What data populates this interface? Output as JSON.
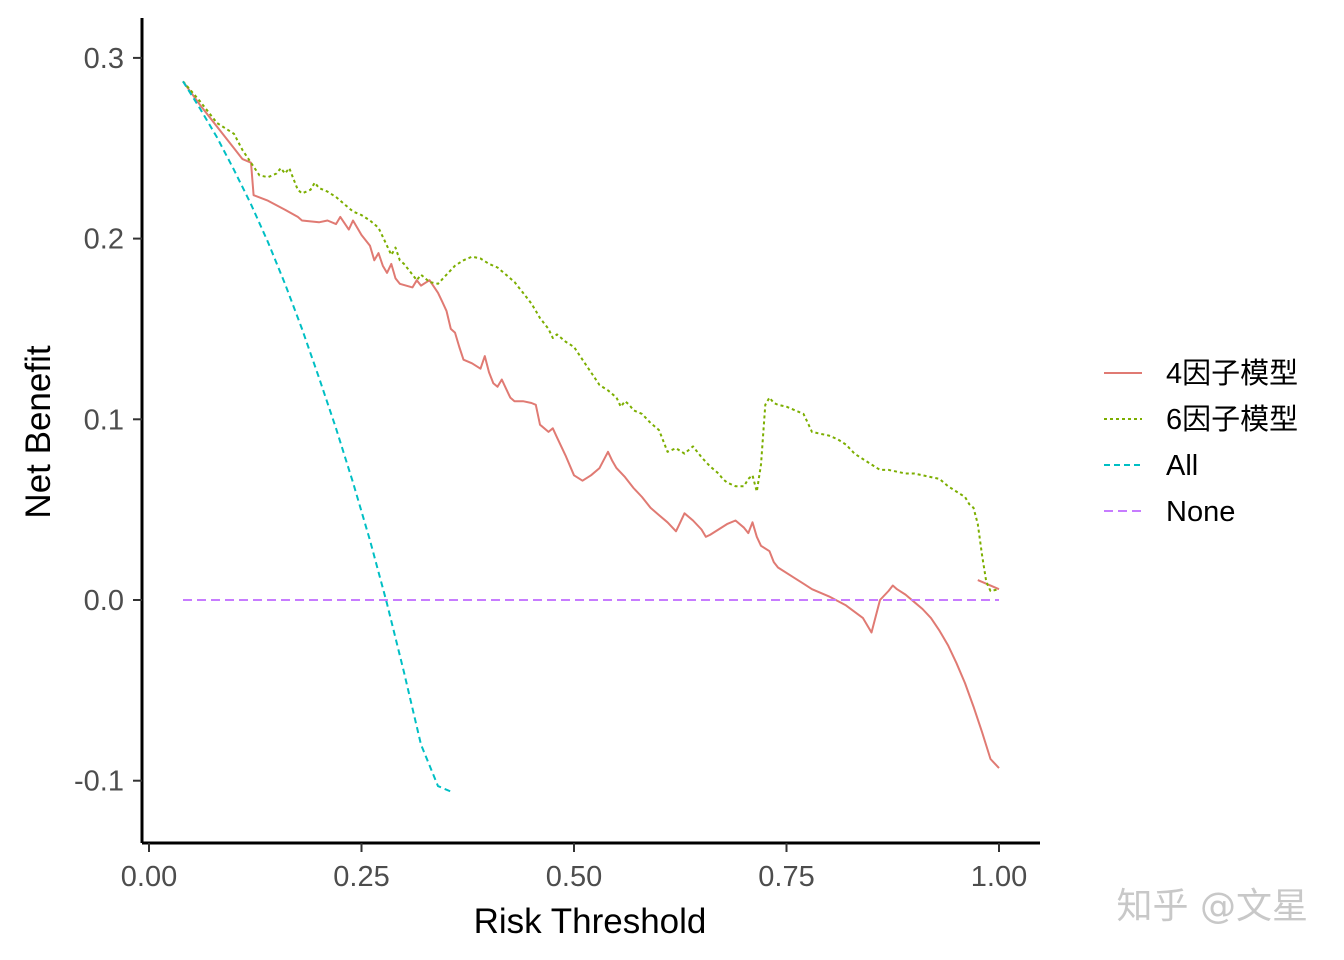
{
  "chart_data": {
    "type": "line",
    "title": "",
    "xlabel": "Risk Threshold",
    "ylabel": "Net Benefit",
    "xlim": [
      0.0,
      1.0
    ],
    "ylim": [
      -0.13,
      0.325
    ],
    "xticks": [
      0.0,
      0.25,
      0.5,
      0.75,
      1.0
    ],
    "xtick_labels": [
      "0.00",
      "0.25",
      "0.50",
      "0.75",
      "1.00"
    ],
    "yticks": [
      -0.1,
      0.0,
      0.1,
      0.2,
      0.3
    ],
    "ytick_labels": [
      "-0.1",
      "0.0",
      "0.1",
      "0.2",
      "0.3"
    ],
    "legend_position": "right",
    "grid": false,
    "series": [
      {
        "name": "4因子模型",
        "color": "#e07a73",
        "dash": "solid",
        "segments": [
          [
            [
              0.04,
              0.287
            ],
            [
              0.06,
              0.274
            ],
            [
              0.08,
              0.262
            ],
            [
              0.1,
              0.25
            ],
            [
              0.11,
              0.244
            ],
            [
              0.12,
              0.242
            ],
            [
              0.123,
              0.224
            ],
            [
              0.14,
              0.221
            ],
            [
              0.16,
              0.216
            ],
            [
              0.175,
              0.212
            ],
            [
              0.18,
              0.21
            ],
            [
              0.2,
              0.209
            ],
            [
              0.21,
              0.21
            ],
            [
              0.22,
              0.208
            ],
            [
              0.225,
              0.212
            ],
            [
              0.235,
              0.205
            ],
            [
              0.24,
              0.21
            ],
            [
              0.25,
              0.202
            ],
            [
              0.26,
              0.196
            ],
            [
              0.265,
              0.188
            ],
            [
              0.27,
              0.192
            ],
            [
              0.275,
              0.185
            ],
            [
              0.28,
              0.181
            ],
            [
              0.285,
              0.186
            ],
            [
              0.29,
              0.178
            ],
            [
              0.295,
              0.175
            ],
            [
              0.31,
              0.173
            ],
            [
              0.315,
              0.177
            ],
            [
              0.32,
              0.174
            ],
            [
              0.33,
              0.177
            ],
            [
              0.34,
              0.17
            ],
            [
              0.345,
              0.165
            ],
            [
              0.35,
              0.16
            ],
            [
              0.355,
              0.15
            ],
            [
              0.36,
              0.148
            ],
            [
              0.365,
              0.14
            ],
            [
              0.37,
              0.133
            ],
            [
              0.38,
              0.131
            ],
            [
              0.39,
              0.128
            ],
            [
              0.395,
              0.135
            ],
            [
              0.4,
              0.126
            ],
            [
              0.405,
              0.12
            ],
            [
              0.41,
              0.118
            ],
            [
              0.415,
              0.122
            ],
            [
              0.42,
              0.117
            ],
            [
              0.425,
              0.112
            ],
            [
              0.43,
              0.11
            ],
            [
              0.44,
              0.11
            ],
            [
              0.45,
              0.109
            ],
            [
              0.455,
              0.108
            ],
            [
              0.46,
              0.097
            ],
            [
              0.47,
              0.093
            ],
            [
              0.475,
              0.095
            ],
            [
              0.48,
              0.09
            ],
            [
              0.49,
              0.08
            ],
            [
              0.5,
              0.069
            ],
            [
              0.51,
              0.066
            ],
            [
              0.52,
              0.069
            ],
            [
              0.53,
              0.073
            ],
            [
              0.54,
              0.082
            ],
            [
              0.545,
              0.077
            ],
            [
              0.55,
              0.073
            ],
            [
              0.56,
              0.068
            ],
            [
              0.57,
              0.062
            ],
            [
              0.58,
              0.057
            ],
            [
              0.59,
              0.051
            ],
            [
              0.6,
              0.047
            ],
            [
              0.61,
              0.043
            ],
            [
              0.62,
              0.038
            ],
            [
              0.625,
              0.043
            ],
            [
              0.63,
              0.048
            ],
            [
              0.64,
              0.044
            ],
            [
              0.65,
              0.039
            ],
            [
              0.655,
              0.035
            ],
            [
              0.66,
              0.036
            ],
            [
              0.67,
              0.039
            ],
            [
              0.68,
              0.042
            ],
            [
              0.69,
              0.044
            ],
            [
              0.7,
              0.04
            ],
            [
              0.705,
              0.037
            ],
            [
              0.71,
              0.043
            ],
            [
              0.715,
              0.035
            ],
            [
              0.72,
              0.03
            ],
            [
              0.73,
              0.027
            ],
            [
              0.735,
              0.021
            ],
            [
              0.74,
              0.018
            ],
            [
              0.76,
              0.012
            ],
            [
              0.77,
              0.009
            ],
            [
              0.78,
              0.006
            ],
            [
              0.8,
              0.002
            ],
            [
              0.82,
              -0.003
            ],
            [
              0.84,
              -0.01
            ],
            [
              0.85,
              -0.018
            ],
            [
              0.86,
              0.0
            ],
            [
              0.87,
              0.005
            ],
            [
              0.875,
              0.008
            ],
            [
              0.88,
              0.006
            ],
            [
              0.89,
              0.003
            ],
            [
              0.9,
              -0.001
            ],
            [
              0.91,
              -0.005
            ],
            [
              0.92,
              -0.01
            ],
            [
              0.93,
              -0.017
            ],
            [
              0.94,
              -0.025
            ],
            [
              0.95,
              -0.035
            ],
            [
              0.96,
              -0.046
            ],
            [
              0.97,
              -0.059
            ],
            [
              0.98,
              -0.073
            ],
            [
              0.99,
              -0.088
            ],
            [
              1.0,
              -0.093
            ]
          ],
          [
            [
              0.975,
              0.011
            ],
            [
              1.0,
              0.006
            ]
          ]
        ]
      },
      {
        "name": "6因子模型",
        "color": "#7cae00",
        "dash": "dotted",
        "segments": [
          [
            [
              0.04,
              0.287
            ],
            [
              0.06,
              0.276
            ],
            [
              0.08,
              0.264
            ],
            [
              0.1,
              0.258
            ],
            [
              0.11,
              0.249
            ],
            [
              0.12,
              0.242
            ],
            [
              0.13,
              0.235
            ],
            [
              0.14,
              0.234
            ],
            [
              0.15,
              0.236
            ],
            [
              0.155,
              0.239
            ],
            [
              0.16,
              0.236
            ],
            [
              0.165,
              0.239
            ],
            [
              0.17,
              0.233
            ],
            [
              0.175,
              0.227
            ],
            [
              0.18,
              0.225
            ],
            [
              0.19,
              0.227
            ],
            [
              0.195,
              0.231
            ],
            [
              0.2,
              0.228
            ],
            [
              0.21,
              0.226
            ],
            [
              0.22,
              0.223
            ],
            [
              0.23,
              0.219
            ],
            [
              0.24,
              0.215
            ],
            [
              0.25,
              0.213
            ],
            [
              0.26,
              0.21
            ],
            [
              0.27,
              0.206
            ],
            [
              0.275,
              0.201
            ],
            [
              0.28,
              0.196
            ],
            [
              0.285,
              0.191
            ],
            [
              0.29,
              0.195
            ],
            [
              0.295,
              0.188
            ],
            [
              0.3,
              0.186
            ],
            [
              0.31,
              0.18
            ],
            [
              0.315,
              0.177
            ],
            [
              0.32,
              0.18
            ],
            [
              0.33,
              0.176
            ],
            [
              0.34,
              0.175
            ],
            [
              0.35,
              0.18
            ],
            [
              0.36,
              0.185
            ],
            [
              0.37,
              0.188
            ],
            [
              0.38,
              0.19
            ],
            [
              0.39,
              0.189
            ],
            [
              0.4,
              0.186
            ],
            [
              0.41,
              0.184
            ],
            [
              0.42,
              0.18
            ],
            [
              0.43,
              0.176
            ],
            [
              0.44,
              0.17
            ],
            [
              0.45,
              0.164
            ],
            [
              0.455,
              0.16
            ],
            [
              0.46,
              0.156
            ],
            [
              0.47,
              0.15
            ],
            [
              0.475,
              0.145
            ],
            [
              0.48,
              0.147
            ],
            [
              0.49,
              0.143
            ],
            [
              0.5,
              0.14
            ],
            [
              0.51,
              0.133
            ],
            [
              0.52,
              0.126
            ],
            [
              0.53,
              0.119
            ],
            [
              0.54,
              0.116
            ],
            [
              0.55,
              0.112
            ],
            [
              0.555,
              0.107
            ],
            [
              0.56,
              0.11
            ],
            [
              0.565,
              0.108
            ],
            [
              0.57,
              0.105
            ],
            [
              0.58,
              0.103
            ],
            [
              0.59,
              0.098
            ],
            [
              0.6,
              0.094
            ],
            [
              0.605,
              0.088
            ],
            [
              0.61,
              0.082
            ],
            [
              0.62,
              0.084
            ],
            [
              0.63,
              0.081
            ],
            [
              0.64,
              0.085
            ],
            [
              0.65,
              0.079
            ],
            [
              0.66,
              0.074
            ],
            [
              0.67,
              0.07
            ],
            [
              0.675,
              0.067
            ],
            [
              0.68,
              0.065
            ],
            [
              0.69,
              0.063
            ],
            [
              0.7,
              0.063
            ],
            [
              0.705,
              0.067
            ],
            [
              0.71,
              0.069
            ],
            [
              0.715,
              0.06
            ],
            [
              0.72,
              0.075
            ],
            [
              0.725,
              0.108
            ],
            [
              0.73,
              0.112
            ],
            [
              0.735,
              0.109
            ],
            [
              0.74,
              0.108
            ],
            [
              0.75,
              0.107
            ],
            [
              0.76,
              0.105
            ],
            [
              0.77,
              0.103
            ],
            [
              0.775,
              0.098
            ],
            [
              0.78,
              0.093
            ],
            [
              0.79,
              0.092
            ],
            [
              0.8,
              0.091
            ],
            [
              0.81,
              0.089
            ],
            [
              0.82,
              0.086
            ],
            [
              0.83,
              0.081
            ],
            [
              0.84,
              0.078
            ],
            [
              0.85,
              0.075
            ],
            [
              0.86,
              0.072
            ],
            [
              0.87,
              0.072
            ],
            [
              0.88,
              0.071
            ],
            [
              0.89,
              0.07
            ],
            [
              0.9,
              0.07
            ],
            [
              0.91,
              0.069
            ],
            [
              0.92,
              0.068
            ],
            [
              0.93,
              0.067
            ],
            [
              0.94,
              0.063
            ],
            [
              0.95,
              0.06
            ],
            [
              0.96,
              0.057
            ],
            [
              0.965,
              0.053
            ],
            [
              0.97,
              0.051
            ],
            [
              0.975,
              0.042
            ],
            [
              0.98,
              0.025
            ],
            [
              0.985,
              0.01
            ],
            [
              0.99,
              0.005
            ],
            [
              1.0,
              0.006
            ]
          ]
        ]
      },
      {
        "name": "All",
        "color": "#00bfc4",
        "dash": "dashed",
        "segments": [
          [
            [
              0.04,
              0.287
            ],
            [
              0.06,
              0.272
            ],
            [
              0.08,
              0.256
            ],
            [
              0.1,
              0.238
            ],
            [
              0.12,
              0.219
            ],
            [
              0.14,
              0.198
            ],
            [
              0.16,
              0.175
            ],
            [
              0.18,
              0.15
            ],
            [
              0.2,
              0.123
            ],
            [
              0.22,
              0.095
            ],
            [
              0.24,
              0.065
            ],
            [
              0.26,
              0.033
            ],
            [
              0.28,
              -0.002
            ],
            [
              0.3,
              -0.04
            ],
            [
              0.32,
              -0.08
            ],
            [
              0.34,
              -0.103
            ],
            [
              0.355,
              -0.106
            ]
          ]
        ]
      },
      {
        "name": "None",
        "color": "#c77cff",
        "dash": "longdash",
        "segments": [
          [
            [
              0.04,
              0.0
            ],
            [
              1.0,
              0.0
            ]
          ]
        ]
      }
    ],
    "annotations": [
      {
        "text": "知乎 @文星",
        "kind": "watermark"
      }
    ]
  }
}
